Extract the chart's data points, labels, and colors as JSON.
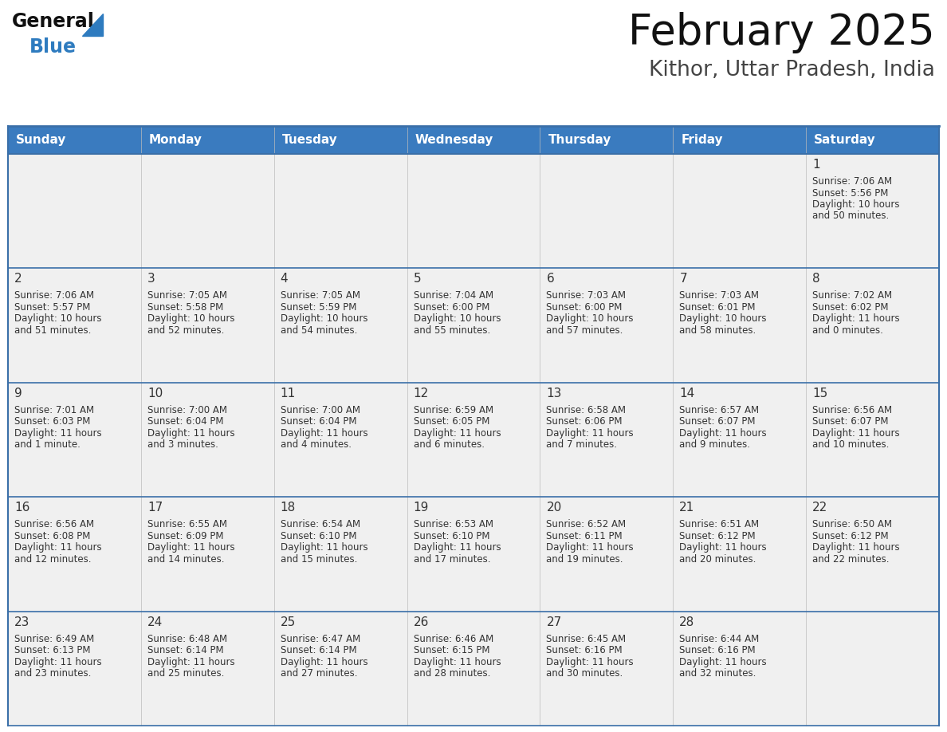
{
  "title": "February 2025",
  "subtitle": "Kithor, Uttar Pradesh, India",
  "days_of_week": [
    "Sunday",
    "Monday",
    "Tuesday",
    "Wednesday",
    "Thursday",
    "Friday",
    "Saturday"
  ],
  "header_bg": "#3a7bbf",
  "header_text": "#ffffff",
  "row_bg": "#f0f0f0",
  "border_color": "#3a6fa8",
  "text_color": "#333333",
  "day_num_color": "#333333",
  "logo_text_color": "#1a1a1a",
  "logo_blue_color": "#2e7bbf",
  "triangle_color": "#2e7bbf",
  "calendar_data": [
    [
      null,
      null,
      null,
      null,
      null,
      null,
      {
        "day": 1,
        "sunrise": "7:06 AM",
        "sunset": "5:56 PM",
        "daylight": "10 hours and 50 minutes."
      }
    ],
    [
      {
        "day": 2,
        "sunrise": "7:06 AM",
        "sunset": "5:57 PM",
        "daylight": "10 hours and 51 minutes."
      },
      {
        "day": 3,
        "sunrise": "7:05 AM",
        "sunset": "5:58 PM",
        "daylight": "10 hours and 52 minutes."
      },
      {
        "day": 4,
        "sunrise": "7:05 AM",
        "sunset": "5:59 PM",
        "daylight": "10 hours and 54 minutes."
      },
      {
        "day": 5,
        "sunrise": "7:04 AM",
        "sunset": "6:00 PM",
        "daylight": "10 hours and 55 minutes."
      },
      {
        "day": 6,
        "sunrise": "7:03 AM",
        "sunset": "6:00 PM",
        "daylight": "10 hours and 57 minutes."
      },
      {
        "day": 7,
        "sunrise": "7:03 AM",
        "sunset": "6:01 PM",
        "daylight": "10 hours and 58 minutes."
      },
      {
        "day": 8,
        "sunrise": "7:02 AM",
        "sunset": "6:02 PM",
        "daylight": "11 hours and 0 minutes."
      }
    ],
    [
      {
        "day": 9,
        "sunrise": "7:01 AM",
        "sunset": "6:03 PM",
        "daylight": "11 hours and 1 minute."
      },
      {
        "day": 10,
        "sunrise": "7:00 AM",
        "sunset": "6:04 PM",
        "daylight": "11 hours and 3 minutes."
      },
      {
        "day": 11,
        "sunrise": "7:00 AM",
        "sunset": "6:04 PM",
        "daylight": "11 hours and 4 minutes."
      },
      {
        "day": 12,
        "sunrise": "6:59 AM",
        "sunset": "6:05 PM",
        "daylight": "11 hours and 6 minutes."
      },
      {
        "day": 13,
        "sunrise": "6:58 AM",
        "sunset": "6:06 PM",
        "daylight": "11 hours and 7 minutes."
      },
      {
        "day": 14,
        "sunrise": "6:57 AM",
        "sunset": "6:07 PM",
        "daylight": "11 hours and 9 minutes."
      },
      {
        "day": 15,
        "sunrise": "6:56 AM",
        "sunset": "6:07 PM",
        "daylight": "11 hours and 10 minutes."
      }
    ],
    [
      {
        "day": 16,
        "sunrise": "6:56 AM",
        "sunset": "6:08 PM",
        "daylight": "11 hours and 12 minutes."
      },
      {
        "day": 17,
        "sunrise": "6:55 AM",
        "sunset": "6:09 PM",
        "daylight": "11 hours and 14 minutes."
      },
      {
        "day": 18,
        "sunrise": "6:54 AM",
        "sunset": "6:10 PM",
        "daylight": "11 hours and 15 minutes."
      },
      {
        "day": 19,
        "sunrise": "6:53 AM",
        "sunset": "6:10 PM",
        "daylight": "11 hours and 17 minutes."
      },
      {
        "day": 20,
        "sunrise": "6:52 AM",
        "sunset": "6:11 PM",
        "daylight": "11 hours and 19 minutes."
      },
      {
        "day": 21,
        "sunrise": "6:51 AM",
        "sunset": "6:12 PM",
        "daylight": "11 hours and 20 minutes."
      },
      {
        "day": 22,
        "sunrise": "6:50 AM",
        "sunset": "6:12 PM",
        "daylight": "11 hours and 22 minutes."
      }
    ],
    [
      {
        "day": 23,
        "sunrise": "6:49 AM",
        "sunset": "6:13 PM",
        "daylight": "11 hours and 23 minutes."
      },
      {
        "day": 24,
        "sunrise": "6:48 AM",
        "sunset": "6:14 PM",
        "daylight": "11 hours and 25 minutes."
      },
      {
        "day": 25,
        "sunrise": "6:47 AM",
        "sunset": "6:14 PM",
        "daylight": "11 hours and 27 minutes."
      },
      {
        "day": 26,
        "sunrise": "6:46 AM",
        "sunset": "6:15 PM",
        "daylight": "11 hours and 28 minutes."
      },
      {
        "day": 27,
        "sunrise": "6:45 AM",
        "sunset": "6:16 PM",
        "daylight": "11 hours and 30 minutes."
      },
      {
        "day": 28,
        "sunrise": "6:44 AM",
        "sunset": "6:16 PM",
        "daylight": "11 hours and 32 minutes."
      },
      null
    ]
  ]
}
